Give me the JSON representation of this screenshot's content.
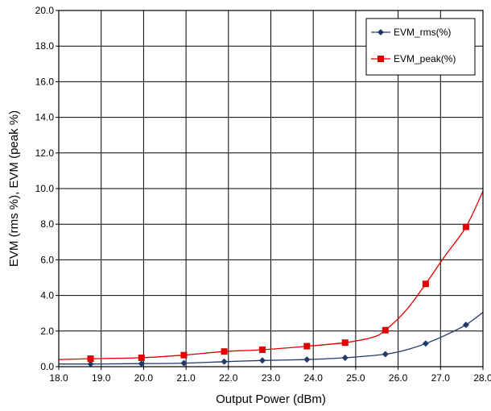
{
  "chart_data": {
    "type": "line",
    "title": "",
    "xlabel": "Output Power (dBm)",
    "ylabel": "EVM (rms %), EVM (peak %)",
    "xlim": [
      18.0,
      28.0
    ],
    "ylim": [
      0.0,
      20.0
    ],
    "x_ticks": [
      "18.0",
      "19.0",
      "20.0",
      "21.0",
      "22.0",
      "23.0",
      "24.0",
      "25.0",
      "26.0",
      "27.0",
      "28.0"
    ],
    "y_ticks": [
      "0.0",
      "2.0",
      "4.0",
      "6.0",
      "8.0",
      "10.0",
      "12.0",
      "14.0",
      "16.0",
      "18.0",
      "20.0"
    ],
    "grid": true,
    "legend_position": "top-right",
    "series": [
      {
        "name": "EVM_rms(%)",
        "color": "#1f3a68",
        "marker": "diamond",
        "points": [
          {
            "x": 18.75,
            "y": 0.15
          },
          {
            "x": 19.95,
            "y": 0.17
          },
          {
            "x": 20.95,
            "y": 0.2
          },
          {
            "x": 21.9,
            "y": 0.28
          },
          {
            "x": 22.8,
            "y": 0.35
          },
          {
            "x": 23.85,
            "y": 0.4
          },
          {
            "x": 24.75,
            "y": 0.5
          },
          {
            "x": 25.7,
            "y": 0.7
          },
          {
            "x": 26.65,
            "y": 1.3
          },
          {
            "x": 27.6,
            "y": 2.35
          }
        ],
        "curve": [
          {
            "x": 18.0,
            "y": 0.15
          },
          {
            "x": 18.75,
            "y": 0.15
          },
          {
            "x": 19.95,
            "y": 0.17
          },
          {
            "x": 20.95,
            "y": 0.2
          },
          {
            "x": 21.9,
            "y": 0.28
          },
          {
            "x": 22.8,
            "y": 0.35
          },
          {
            "x": 23.85,
            "y": 0.4
          },
          {
            "x": 24.75,
            "y": 0.5
          },
          {
            "x": 25.7,
            "y": 0.7
          },
          {
            "x": 26.2,
            "y": 0.95
          },
          {
            "x": 26.65,
            "y": 1.3
          },
          {
            "x": 27.1,
            "y": 1.75
          },
          {
            "x": 27.6,
            "y": 2.35
          },
          {
            "x": 28.0,
            "y": 3.05
          }
        ]
      },
      {
        "name": "EVM_peak(%)",
        "color": "#e00000",
        "marker": "square",
        "points": [
          {
            "x": 18.75,
            "y": 0.45
          },
          {
            "x": 19.95,
            "y": 0.5
          },
          {
            "x": 20.95,
            "y": 0.65
          },
          {
            "x": 21.9,
            "y": 0.85
          },
          {
            "x": 22.8,
            "y": 0.95
          },
          {
            "x": 23.85,
            "y": 1.15
          },
          {
            "x": 24.75,
            "y": 1.35
          },
          {
            "x": 25.7,
            "y": 2.05
          },
          {
            "x": 26.65,
            "y": 4.65
          },
          {
            "x": 27.6,
            "y": 7.85
          }
        ],
        "curve": [
          {
            "x": 18.0,
            "y": 0.4
          },
          {
            "x": 18.75,
            "y": 0.45
          },
          {
            "x": 19.95,
            "y": 0.5
          },
          {
            "x": 20.95,
            "y": 0.65
          },
          {
            "x": 21.9,
            "y": 0.85
          },
          {
            "x": 22.8,
            "y": 0.95
          },
          {
            "x": 23.85,
            "y": 1.15
          },
          {
            "x": 24.75,
            "y": 1.35
          },
          {
            "x": 25.4,
            "y": 1.65
          },
          {
            "x": 25.7,
            "y": 2.05
          },
          {
            "x": 26.2,
            "y": 3.2
          },
          {
            "x": 26.65,
            "y": 4.65
          },
          {
            "x": 27.1,
            "y": 6.2
          },
          {
            "x": 27.6,
            "y": 7.85
          },
          {
            "x": 28.0,
            "y": 9.85
          }
        ]
      }
    ]
  }
}
